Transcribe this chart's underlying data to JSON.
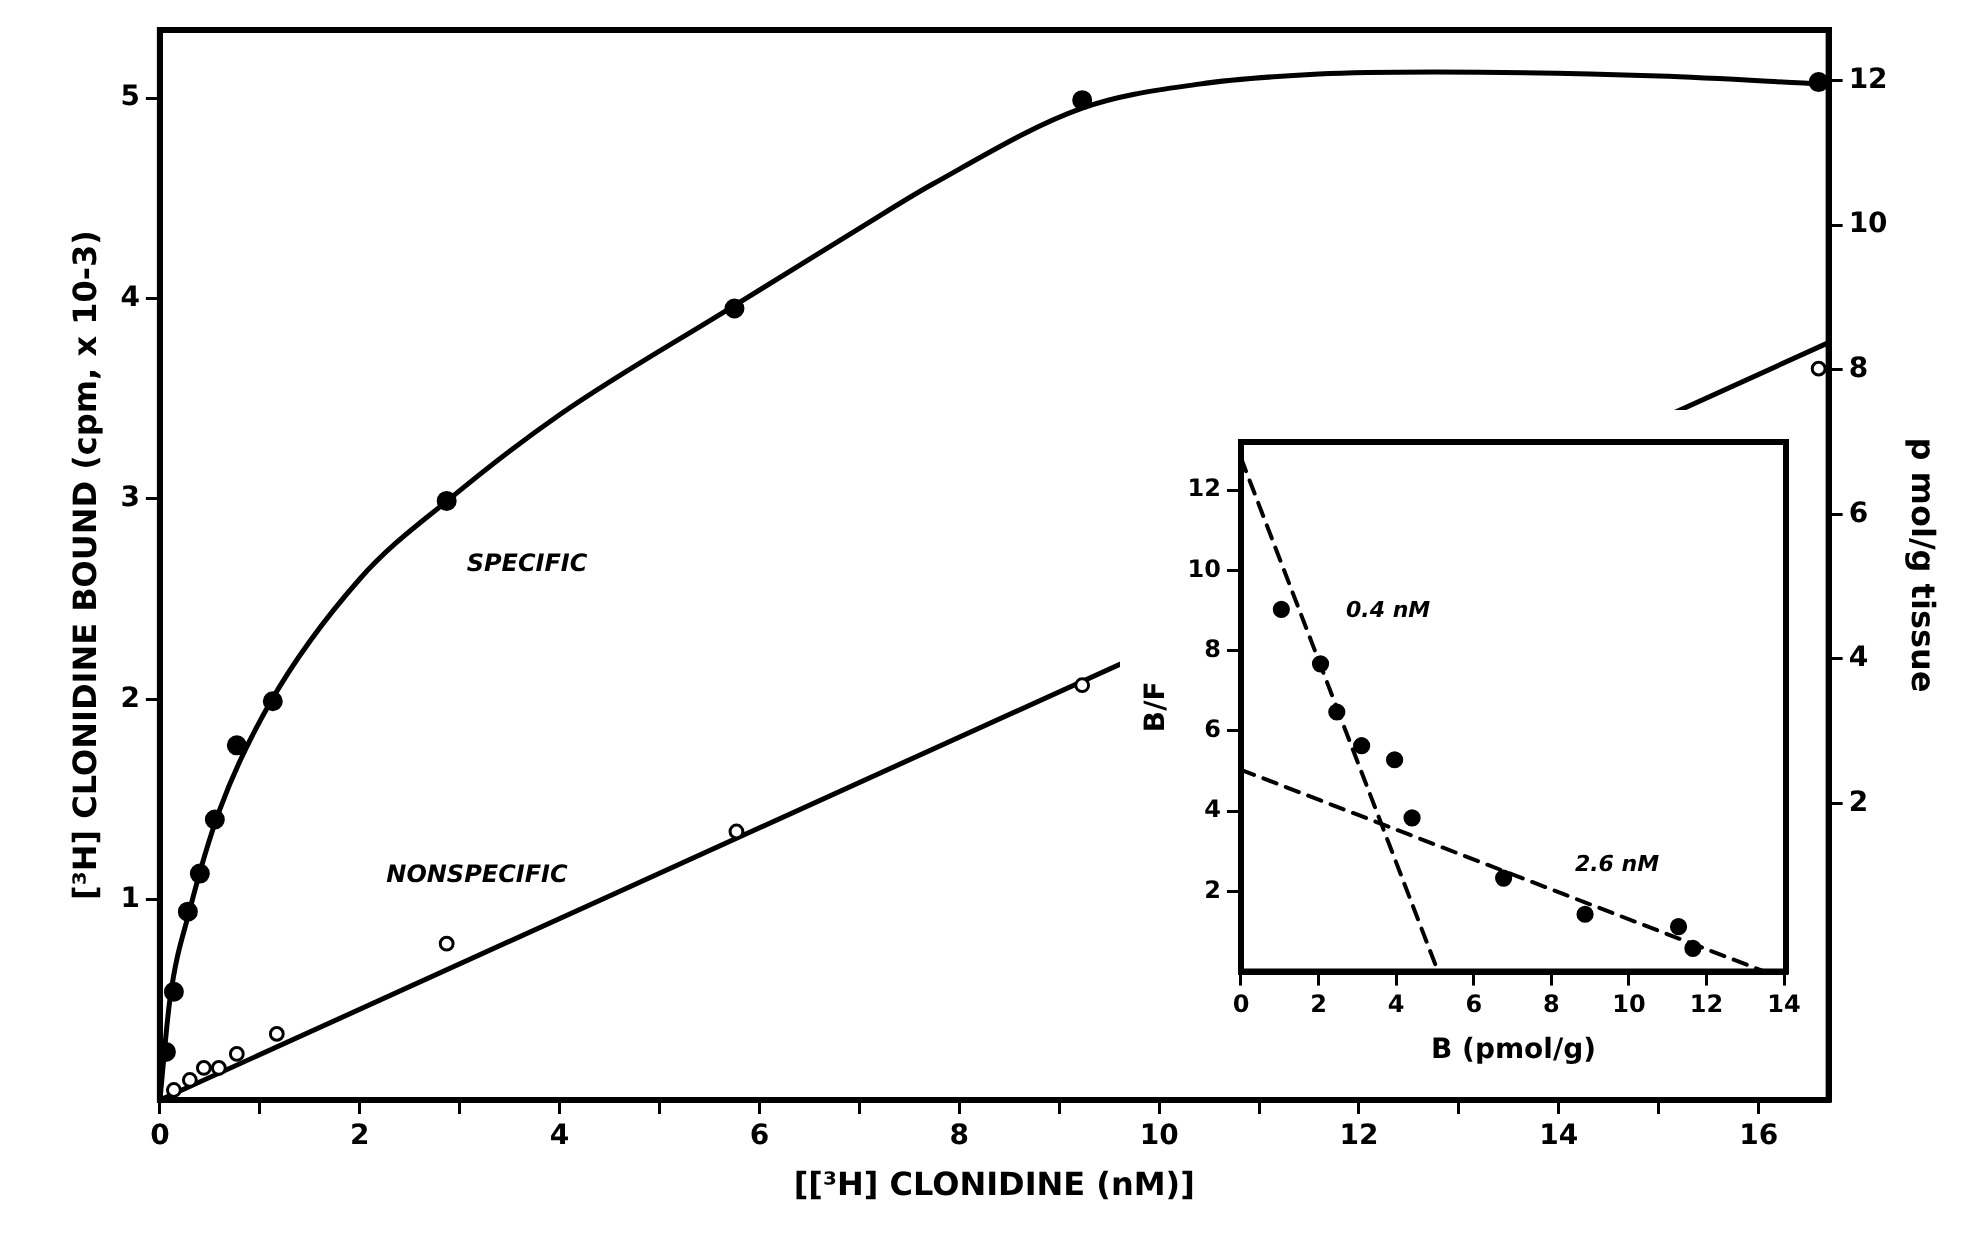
{
  "chart_data": [
    {
      "type": "scatter",
      "xlabel": "[[³H] CLONIDINE (nM)]",
      "ylabel": "[³H] CLONIDINE BOUND (cpm, x 10-3)",
      "y2label": "p mol/g tissue",
      "xlim": [
        0,
        16.7
      ],
      "xticks": [
        0,
        {
          "value": 1,
          "label": null
        },
        2,
        {
          "value": 3,
          "label": null
        },
        4,
        {
          "value": 5,
          "label": null
        },
        6,
        {
          "value": 7,
          "label": null
        },
        8,
        {
          "value": 9,
          "label": null
        },
        10,
        {
          "value": 11,
          "label": null
        },
        12,
        {
          "value": 13,
          "label": null
        },
        14,
        {
          "value": 15,
          "label": null
        },
        16
      ],
      "ylim": [
        0,
        5.34
      ],
      "yticks": [
        1,
        2,
        3,
        4,
        5
      ],
      "y2lim": [
        -2.1,
        12.7
      ],
      "y2ticks": [
        2,
        4,
        6,
        8,
        10,
        12
      ],
      "grid": false,
      "legend": false,
      "series": [
        {
          "type": "scatter",
          "marker": "circle",
          "color": "#000000",
          "x": [
            0.06,
            0.14,
            0.28,
            0.4,
            0.55,
            0.77,
            1.13,
            2.87,
            5.75,
            9.23,
            16.6
          ],
          "values": [
            0.24,
            0.54,
            0.94,
            1.13,
            1.4,
            1.77,
            1.99,
            2.99,
            3.95,
            4.99,
            5.08
          ]
        },
        {
          "type": "line",
          "marker": "none",
          "line_style": "solid",
          "color": "#000000",
          "x": [
            0,
            0.1,
            0.3,
            0.6,
            1.1,
            2,
            2.9,
            4,
            5.7,
            7,
            7.73,
            9.23,
            10.4,
            11.6,
            12.75,
            15,
            16.64
          ],
          "values": [
            0,
            0.5,
            0.95,
            1.45,
            1.98,
            2.6,
            3.0,
            3.42,
            3.95,
            4.35,
            4.57,
            4.95,
            5.07,
            5.12,
            5.13,
            5.11,
            5.07
          ]
        },
        {
          "type": "scatter",
          "marker": "circle",
          "color": "#000000",
          "x": [
            0.14,
            0.3,
            0.44,
            0.59,
            0.77,
            1.17,
            2.87,
            5.77,
            9.23,
            16.6
          ],
          "values": [
            0.05,
            0.1,
            0.16,
            0.16,
            0.23,
            0.33,
            0.78,
            1.34,
            2.07,
            3.65
          ]
        },
        {
          "type": "line",
          "marker": "none",
          "line_style": "solid",
          "color": "#000000",
          "x": [
            0,
            16.7
          ],
          "values": [
            0,
            3.78
          ]
        }
      ],
      "annotations": [
        "SPECIFIC",
        "NONSPECIFIC"
      ]
    },
    {
      "type": "scatter",
      "xlabel": "B (pmol/g)",
      "ylabel": "B/F",
      "xlim": [
        0,
        14.05
      ],
      "xticks": [
        0,
        2,
        4,
        6,
        8,
        10,
        12,
        14
      ],
      "ylim": [
        0,
        13.2
      ],
      "yticks": [
        2,
        4,
        6,
        8,
        10,
        12
      ],
      "grid": false,
      "legend": false,
      "series": [
        {
          "type": "scatter",
          "marker": "circle",
          "color": "#000000",
          "x": [
            1.04,
            2.05,
            2.47,
            3.11,
            3.96,
            4.41,
            6.77,
            8.87,
            11.28,
            11.65
          ],
          "values": [
            9.03,
            7.67,
            6.47,
            5.63,
            5.28,
            3.83,
            2.33,
            1.43,
            1.12,
            0.58
          ]
        },
        {
          "type": "line",
          "marker": "none",
          "line_style": "dashed",
          "color": "#000000",
          "x": [
            0,
            5.08
          ],
          "values": [
            12.8,
            0
          ]
        },
        {
          "type": "line",
          "marker": "none",
          "line_style": "dashed",
          "color": "#000000",
          "x": [
            0,
            13.5
          ],
          "values": [
            5.03,
            0
          ]
        }
      ],
      "annotations": [
        "0.4 nM",
        "2.6 nM"
      ]
    }
  ]
}
